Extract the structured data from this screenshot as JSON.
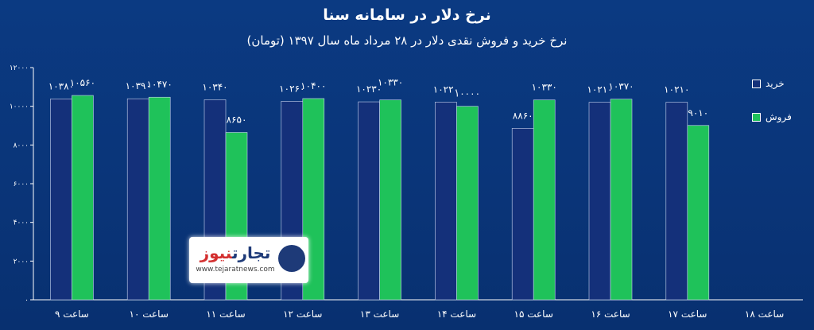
{
  "title": "نرخ دلار در سامانه سنا",
  "subtitle": "نرخ خرید و فروش نقدی دلار در ۲۸ مرداد ماه سال ۱۳۹۷ (تومان)",
  "logo": {
    "name_part1": "تجارت",
    "name_part2": "نیوز",
    "url": "www.tejaratnews.com"
  },
  "colors": {
    "background": "#0a3579",
    "buy": "#14307a",
    "sell": "#1fc25a",
    "text": "#ffffff"
  },
  "chart_data": {
    "type": "bar",
    "categories": [
      "ساعت ۹",
      "ساعت ۱۰",
      "ساعت ۱۱",
      "ساعت ۱۲",
      "ساعت ۱۳",
      "ساعت ۱۴",
      "ساعت ۱۵",
      "ساعت ۱۶",
      "ساعت ۱۷",
      "ساعت ۱۸"
    ],
    "series": [
      {
        "name": "خرید",
        "values": [
          10380,
          10390,
          10340,
          10260,
          10230,
          10220,
          8860,
          10210,
          10210,
          null
        ],
        "labels": [
          "۱۰۳۸۰",
          "۱۰۳۹۰",
          "۱۰۳۴۰",
          "۱۰۲۶۰",
          "۱۰۲۳۰",
          "۱۰۲۲۰",
          "۸۸۶۰",
          "۱۰۲۱۰",
          "۱۰۲۱۰",
          ""
        ]
      },
      {
        "name": "فروش",
        "values": [
          10560,
          10470,
          8650,
          10400,
          10330,
          10000,
          10330,
          10370,
          9010,
          null
        ],
        "labels": [
          "۱۰۵۶۰",
          "۱۰۴۷۰",
          "۸۶۵۰",
          "۱۰۴۰۰",
          "۱۰۳۳۰",
          "۱۰۰۰۰",
          "۱۰۳۳۰",
          "۱۰۳۷۰",
          "۹۰۱۰",
          ""
        ]
      }
    ],
    "yticks": [
      0,
      2000,
      4000,
      6000,
      8000,
      10000,
      12000
    ],
    "ytick_labels": [
      "۰",
      "۲۰۰۰",
      "۴۰۰۰",
      "۶۰۰۰",
      "۸۰۰۰",
      "۱۰۰۰۰",
      "۱۲۰۰۰"
    ],
    "ylim": [
      0,
      12000
    ],
    "legend_position": "right",
    "grid": false,
    "xlabel": "",
    "ylabel": ""
  }
}
